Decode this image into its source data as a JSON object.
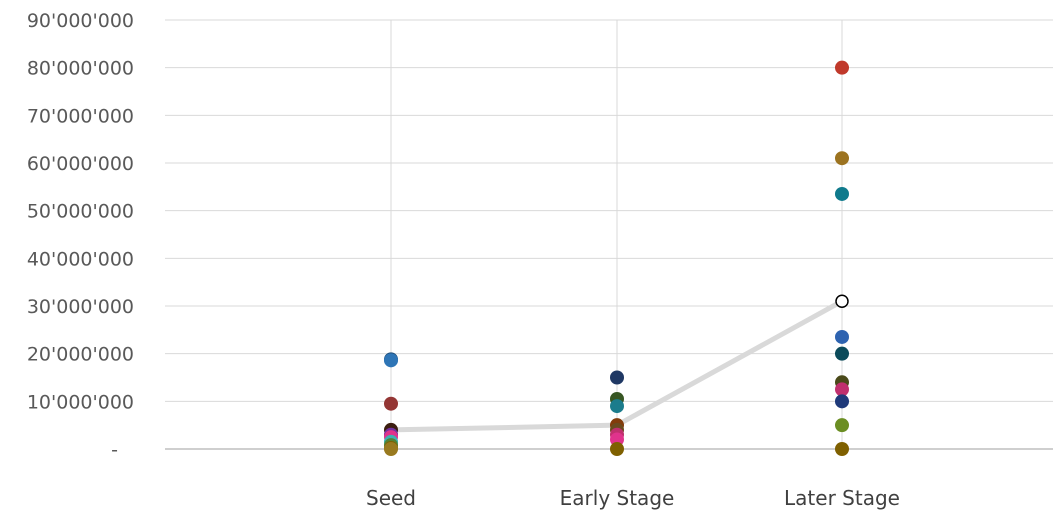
{
  "chart_data": {
    "type": "scatter",
    "categories": [
      "Seed",
      "Early Stage",
      "Later Stage"
    ],
    "ylim": [
      0,
      90000000
    ],
    "yticks": [
      {
        "value": 0,
        "label": "-"
      },
      {
        "value": 10000000,
        "label": "10'000'000"
      },
      {
        "value": 20000000,
        "label": "20'000'000"
      },
      {
        "value": 30000000,
        "label": "30'000'000"
      },
      {
        "value": 40000000,
        "label": "40'000'000"
      },
      {
        "value": 50000000,
        "label": "50'000'000"
      },
      {
        "value": 60000000,
        "label": "60'000'000"
      },
      {
        "value": 70000000,
        "label": "70'000'000"
      },
      {
        "value": 80000000,
        "label": "80'000'000"
      },
      {
        "value": 90000000,
        "label": "90'000'000"
      }
    ],
    "grid": {
      "horizontal": true,
      "vertical": true
    },
    "line_series": {
      "color": "#d9d9d9",
      "marker_stroke": "#000000",
      "values": [
        4000000,
        5000000,
        31000000
      ]
    },
    "points": [
      {
        "category": "Seed",
        "value": 18800000,
        "color": "#1f4e79"
      },
      {
        "category": "Seed",
        "value": 18600000,
        "color": "#2e75b6"
      },
      {
        "category": "Seed",
        "value": 9500000,
        "color": "#943634"
      },
      {
        "category": "Seed",
        "value": 4000000,
        "color": "#3c1e10"
      },
      {
        "category": "Seed",
        "value": 3000000,
        "color": "#7030a0"
      },
      {
        "category": "Seed",
        "value": 2500000,
        "color": "#e0338c"
      },
      {
        "category": "Seed",
        "value": 1500000,
        "color": "#3cb3b3"
      },
      {
        "category": "Seed",
        "value": 800000,
        "color": "#548235"
      },
      {
        "category": "Seed",
        "value": 200000,
        "color": "#7f6000"
      },
      {
        "category": "Seed",
        "value": 0,
        "color": "#997a1f"
      },
      {
        "category": "Early Stage",
        "value": 15000000,
        "color": "#1f3864"
      },
      {
        "category": "Early Stage",
        "value": 10500000,
        "color": "#375623"
      },
      {
        "category": "Early Stage",
        "value": 9000000,
        "color": "#1b7c8c"
      },
      {
        "category": "Early Stage",
        "value": 5000000,
        "color": "#833c0b"
      },
      {
        "category": "Early Stage",
        "value": 4000000,
        "color": "#6b4a1e"
      },
      {
        "category": "Early Stage",
        "value": 3000000,
        "color": "#c0306e"
      },
      {
        "category": "Early Stage",
        "value": 2000000,
        "color": "#e0338c"
      },
      {
        "category": "Early Stage",
        "value": 0,
        "color": "#7f6000"
      },
      {
        "category": "Later Stage",
        "value": 80000000,
        "color": "#c0392b"
      },
      {
        "category": "Later Stage",
        "value": 61000000,
        "color": "#9c7320"
      },
      {
        "category": "Later Stage",
        "value": 53500000,
        "color": "#0f7a8c"
      },
      {
        "category": "Later Stage",
        "value": 23500000,
        "color": "#2e63b0"
      },
      {
        "category": "Later Stage",
        "value": 20000000,
        "color": "#0b4a5a"
      },
      {
        "category": "Later Stage",
        "value": 14000000,
        "color": "#4a4a1a"
      },
      {
        "category": "Later Stage",
        "value": 12500000,
        "color": "#c0306e"
      },
      {
        "category": "Later Stage",
        "value": 10000000,
        "color": "#1f3a7a"
      },
      {
        "category": "Later Stage",
        "value": 5000000,
        "color": "#6b8e23"
      },
      {
        "category": "Later Stage",
        "value": 0,
        "color": "#7f6000"
      }
    ]
  }
}
